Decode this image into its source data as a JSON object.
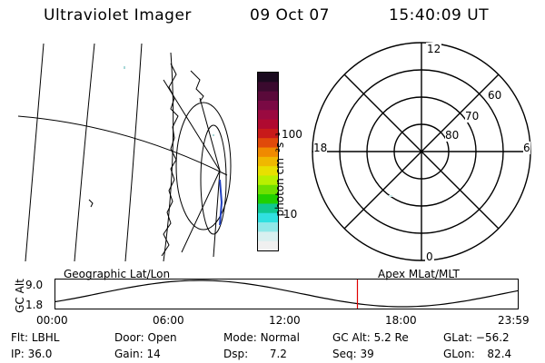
{
  "header": {
    "instrument": "Ultraviolet Imager",
    "date": "09 Oct 07",
    "time": "15:40:09 UT"
  },
  "colorbar": {
    "label": "photon cm⁻²s⁻¹",
    "ticks": [
      "100",
      "10"
    ],
    "colors": [
      "#1a0a1e",
      "#3a0a2e",
      "#5a0a3a",
      "#7a0a44",
      "#9a0a40",
      "#b00a30",
      "#c81a1a",
      "#e04a0a",
      "#f08a00",
      "#f0b800",
      "#e8e000",
      "#b8f000",
      "#6ee000",
      "#20d000",
      "#10c890",
      "#30e0e0",
      "#90e8e8",
      "#d8f0f0",
      "#f0f0f0"
    ]
  },
  "polar": {
    "labels": {
      "top": "12",
      "bottom": "0",
      "left": "18",
      "right": "6"
    },
    "lat_labels": [
      "60",
      "70",
      "80"
    ]
  },
  "timeline": {
    "left_title": "Geographic Lat/Lon",
    "right_title": "Apex MLat/MLT",
    "ylabel": "GC Alt",
    "ymax": "9.0",
    "ymin": "1.8",
    "xticks": [
      "00:00",
      "06:00",
      "12:00",
      "18:00",
      "23:59"
    ],
    "current_time_hours": 15.67
  },
  "info": {
    "flt_label": "Flt:",
    "flt_value": "LBHL",
    "ip_label": "IP:",
    "ip_value": "36.0",
    "door_label": "Door:",
    "door_value": "Open",
    "gain_label": "Gain:",
    "gain_value": "14",
    "mode_label": "Mode:",
    "mode_value": "Normal",
    "dsp_label": "Dsp:",
    "dsp_value": "7.2",
    "gcalt_label": "GC Alt:",
    "gcalt_value": "5.2 Re",
    "seq_label": "Seq:",
    "seq_value": "39",
    "glat_label": "GLat:",
    "glat_value": "−56.2",
    "glon_label": "GLon:",
    "glon_value": "82.4"
  }
}
